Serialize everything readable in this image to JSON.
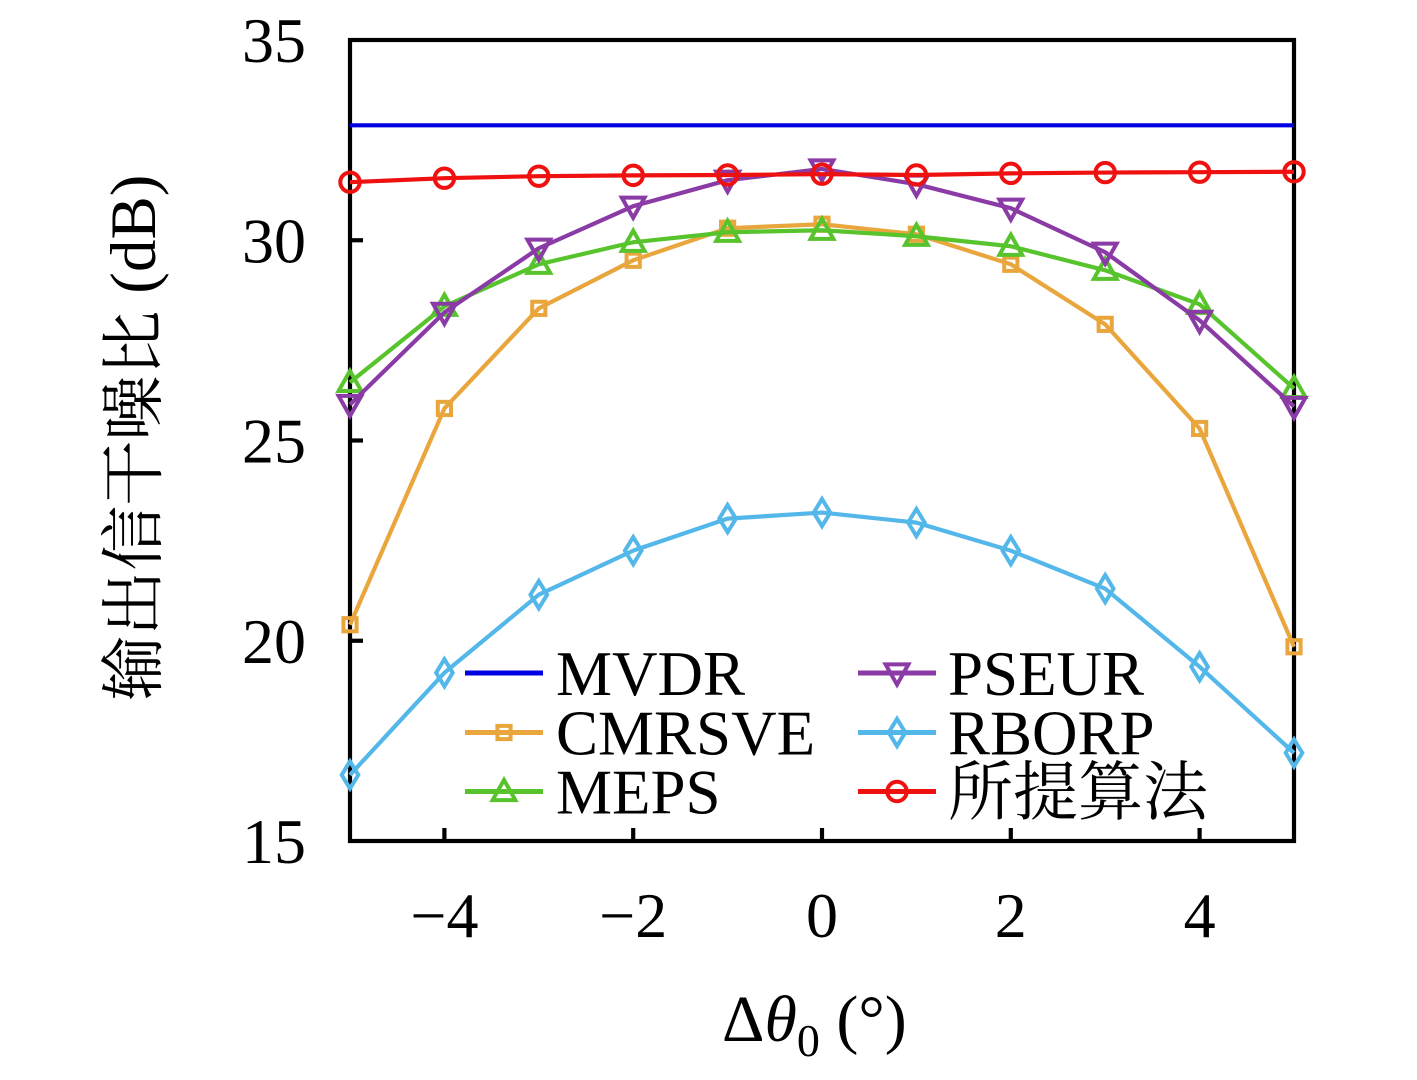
{
  "figure": {
    "background_color": "#ffffff"
  },
  "chart_data": {
    "type": "line",
    "x": [
      -5,
      -4,
      -3,
      -2,
      -1,
      0,
      1,
      2,
      3,
      4,
      5
    ],
    "xlabel": "Δθ₀ (°)",
    "xlabel_parts": {
      "delta": "Δ",
      "theta": "θ",
      "subscript": "0",
      "unit": " (°)"
    },
    "ylabel": "输出信干噪比 (dB)",
    "ylabel_parts": {
      "cjk": "输出信干噪比",
      "latin": "(dB)"
    },
    "xlim": [
      -5,
      5
    ],
    "ylim": [
      15,
      35
    ],
    "xticks": {
      "values": [
        -4,
        -2,
        0,
        2,
        4
      ],
      "labels": [
        "−4",
        "−2",
        "0",
        "2",
        "4"
      ]
    },
    "yticks": {
      "values": [
        15,
        20,
        25,
        30,
        35
      ],
      "labels": [
        "15",
        "20",
        "25",
        "30",
        "35"
      ]
    },
    "grid": false,
    "legend": {
      "position": "inside-bottom-left",
      "columns": 2,
      "frame": false
    },
    "series": [
      {
        "name": "MVDR",
        "color": "#0000E1",
        "marker": "none",
        "values": [
          32.87,
          32.87,
          32.87,
          32.87,
          32.87,
          32.87,
          32.87,
          32.87,
          32.87,
          32.87,
          32.87
        ]
      },
      {
        "name": "CMRSVE",
        "color": "#E9A63C",
        "marker": "square",
        "values": [
          20.4,
          25.8,
          28.3,
          29.5,
          30.3,
          30.4,
          30.15,
          29.4,
          27.9,
          25.3,
          19.85
        ]
      },
      {
        "name": "MEPS",
        "color": "#58C42D",
        "marker": "triangle-up",
        "values": [
          26.45,
          28.35,
          29.4,
          29.95,
          30.2,
          30.25,
          30.1,
          29.85,
          29.25,
          28.4,
          26.3
        ]
      },
      {
        "name": "PSEUR",
        "color": "#8A3BA5",
        "marker": "triangle-down",
        "values": [
          25.9,
          28.2,
          29.8,
          30.85,
          31.5,
          31.78,
          31.4,
          30.8,
          29.7,
          28.0,
          25.85
        ]
      },
      {
        "name": "RBORP",
        "color": "#54B7E9",
        "marker": "diamond-thin",
        "values": [
          16.65,
          19.2,
          21.15,
          22.25,
          23.05,
          23.2,
          22.95,
          22.25,
          21.3,
          19.35,
          17.2
        ]
      },
      {
        "name": "所提算法",
        "color": "#EF1010",
        "marker": "circle",
        "values": [
          31.45,
          31.55,
          31.6,
          31.62,
          31.63,
          31.65,
          31.63,
          31.67,
          31.69,
          31.7,
          31.71
        ]
      }
    ]
  }
}
